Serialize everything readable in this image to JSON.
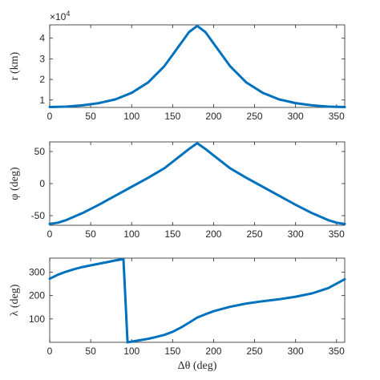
{
  "chart_data": [
    {
      "type": "line",
      "ylabel": "r (km)",
      "xlim": [
        0,
        360
      ],
      "ylim": [
        6400,
        46500
      ],
      "y_multiplier": "×10",
      "y_multiplier_exp": "4",
      "xticks": [
        "0",
        "50",
        "100",
        "150",
        "200",
        "250",
        "300",
        "350"
      ],
      "yticks": [
        {
          "v": 10000,
          "label": "1"
        },
        {
          "v": 20000,
          "label": "2"
        },
        {
          "v": 30000,
          "label": "3"
        },
        {
          "v": 40000,
          "label": "4"
        }
      ],
      "color": "#0072BD",
      "series": [
        {
          "x": [
            0,
            20,
            40,
            60,
            80,
            100,
            120,
            140,
            160,
            170,
            180,
            190,
            200,
            220,
            240,
            260,
            280,
            300,
            320,
            340,
            360
          ],
          "y": [
            6600,
            6800,
            7400,
            8500,
            10300,
            13500,
            18500,
            26500,
            37500,
            43000,
            46000,
            43000,
            37500,
            26500,
            18500,
            13500,
            10300,
            8500,
            7400,
            6800,
            6600
          ]
        }
      ]
    },
    {
      "type": "line",
      "ylabel": "φ (deg)",
      "xlim": [
        0,
        360
      ],
      "ylim": [
        -65,
        65
      ],
      "xticks": [
        "0",
        "50",
        "100",
        "150",
        "200",
        "250",
        "300",
        "350"
      ],
      "yticks": [
        {
          "v": -50,
          "label": "-50"
        },
        {
          "v": 0,
          "label": "0"
        },
        {
          "v": 50,
          "label": "50"
        }
      ],
      "color": "#0072BD",
      "series": [
        {
          "x": [
            0,
            10,
            20,
            40,
            60,
            80,
            100,
            120,
            140,
            160,
            170,
            180,
            190,
            200,
            220,
            240,
            260,
            280,
            300,
            320,
            340,
            350,
            360
          ],
          "y": [
            -63,
            -61,
            -57,
            -46,
            -33,
            -19,
            -5,
            9,
            24,
            44,
            54,
            63,
            54,
            44,
            24,
            9,
            -5,
            -19,
            -33,
            -46,
            -57,
            -61,
            -63
          ]
        }
      ]
    },
    {
      "type": "line",
      "ylabel": "λ (deg)",
      "xlabel": "Δθ (deg)",
      "xlim": [
        0,
        360
      ],
      "ylim": [
        0,
        360
      ],
      "xticks": [
        "0",
        "50",
        "100",
        "150",
        "200",
        "250",
        "300",
        "350"
      ],
      "yticks": [
        {
          "v": 100,
          "label": "100"
        },
        {
          "v": 200,
          "label": "200"
        },
        {
          "v": 300,
          "label": "300"
        }
      ],
      "color": "#0072BD",
      "series": [
        {
          "x": [
            0,
            10,
            20,
            30,
            40,
            50,
            60,
            70,
            80,
            88,
            90,
            95,
            100,
            110,
            120,
            130,
            140,
            150,
            160,
            170,
            180,
            190,
            200,
            220,
            240,
            260,
            280,
            300,
            320,
            340,
            360
          ],
          "y": [
            272,
            289,
            302,
            313,
            322,
            329,
            336,
            343,
            350,
            355,
            355,
            0,
            3,
            9,
            15,
            23,
            32,
            45,
            63,
            84,
            106,
            120,
            133,
            152,
            166,
            176,
            184,
            195,
            209,
            232,
            270
          ]
        }
      ]
    }
  ]
}
